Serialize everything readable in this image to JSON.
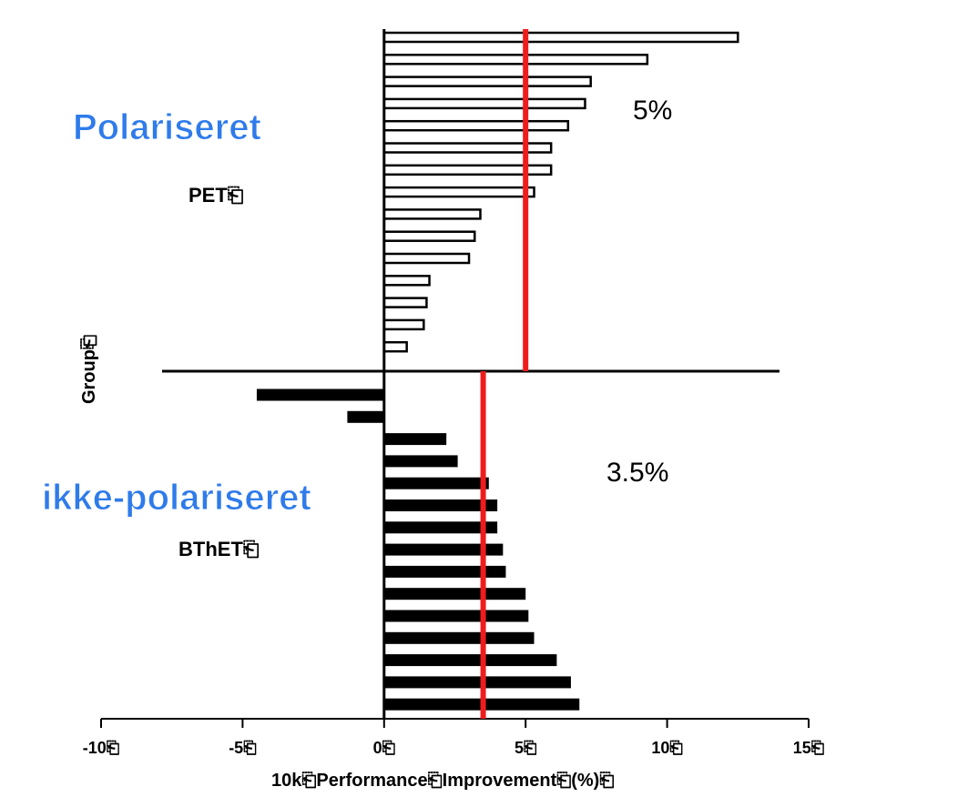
{
  "chart_data": {
    "type": "bar",
    "orientation": "horizontal",
    "xlabel": "10k⎗Performance⎗Improvement⎗(%)⎗",
    "ylabel": "Group⎗",
    "xlim": [
      -10,
      15
    ],
    "xticks": [
      "-10⎗",
      "-5⎗",
      "0⎗",
      "5⎗",
      "10⎗",
      "15⎗"
    ],
    "groups": [
      {
        "title": "Polariseret",
        "name": "PET⎗",
        "fill": "hollow",
        "color": "#000000",
        "values": [
          12.5,
          9.3,
          7.3,
          7.1,
          6.5,
          5.9,
          5.9,
          5.3,
          3.4,
          3.2,
          3.0,
          1.6,
          1.5,
          1.4,
          0.8
        ],
        "mean": 5.0,
        "mean_label": "5%"
      },
      {
        "title": "ikke-polariseret",
        "name": "BThET⎗",
        "fill": "solid",
        "color": "#000000",
        "values": [
          -4.5,
          -1.3,
          2.2,
          2.6,
          3.7,
          4.0,
          4.0,
          4.2,
          4.3,
          5.0,
          5.1,
          5.3,
          6.1,
          6.6,
          6.9
        ],
        "mean": 3.5,
        "mean_label": "3.5%"
      }
    ],
    "mean_line_color": "#ee1c1c",
    "grid": false,
    "legend": "none"
  }
}
